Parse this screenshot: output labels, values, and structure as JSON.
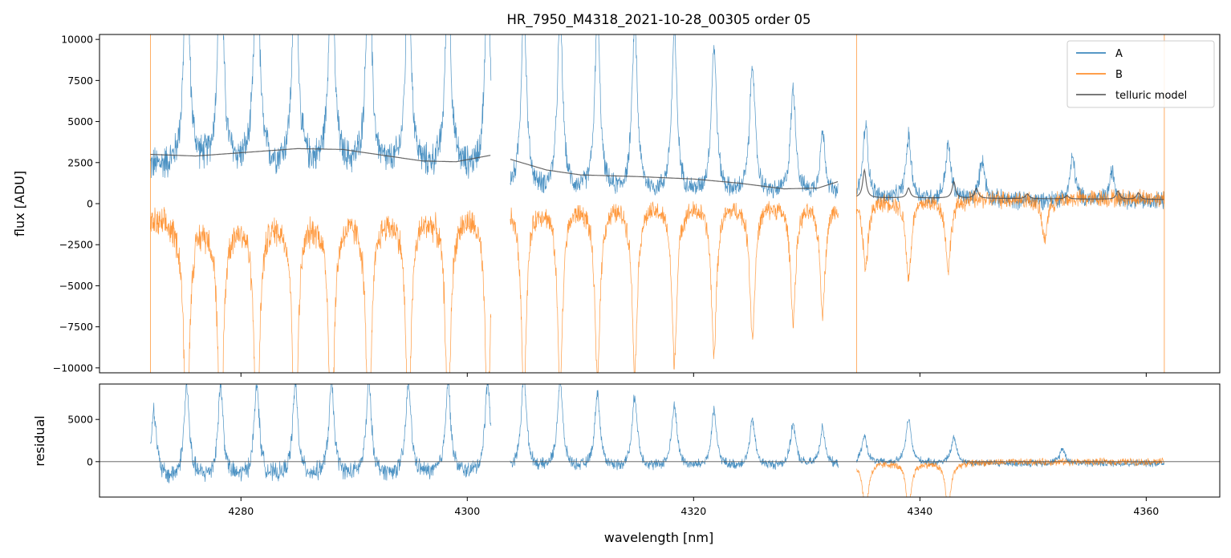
{
  "chart_data": {
    "type": "line",
    "title": "HR_7950_M4318_2021-10-28_00305  order 05",
    "xlabel": "wavelength [nm]",
    "xlim": [
      4267.5,
      4366.5
    ],
    "xticks": [
      4280,
      4300,
      4320,
      4340,
      4360
    ],
    "xtick_labels": [
      "4280",
      "4300",
      "4320",
      "4340",
      "4360"
    ],
    "legend_position": "top-right",
    "colors": {
      "A": "#1f77b4",
      "B": "#ff7f0e",
      "telluric": "#4d4d4d",
      "zero_line": "#555555"
    },
    "panels": [
      {
        "id": "flux",
        "ylabel": "flux [ADU]",
        "ylim": [
          -10300,
          10300
        ],
        "yticks": [
          -10000,
          -7500,
          -5000,
          -2500,
          0,
          2500,
          5000,
          7500,
          10000
        ],
        "ytick_labels": [
          "−10000",
          "−7500",
          "−5000",
          "−2500",
          "0",
          "2500",
          "5000",
          "7500",
          "10000"
        ],
        "series": [
          {
            "name": "A",
            "segments": [
              [
                4272.0,
                4302.1
              ],
              [
                4303.8,
                4332.8
              ],
              [
                4334.4,
                4361.6
              ]
            ],
            "peaks": [
              4275.2,
              4278.2,
              4281.4,
              4284.8,
              4288.0,
              4291.3,
              4294.8,
              4298.3,
              4301.8,
              4305.0,
              4308.2,
              4311.5,
              4314.8,
              4318.3,
              4321.8,
              4325.2,
              4328.8,
              4331.4,
              4335.2,
              4339.0,
              4342.5,
              4345.5,
              4353.5,
              4357.0
            ],
            "peak_heights": [
              14000,
              14000,
              14000,
              14000,
              14000,
              14000,
              13000,
              12500,
              12000,
              11500,
              11000,
              10800,
              10500,
              9800,
              9000,
              8000,
              6500,
              3800,
              4500,
              3800,
              3300,
              2500,
              2600,
              1800
            ],
            "baseline": [
              {
                "x": 4272,
                "y": 2200
              },
              {
                "x": 4302,
                "y": 1800
              },
              {
                "x": 4304,
                "y": 500
              },
              {
                "x": 4332.8,
                "y": 400
              },
              {
                "x": 4334.4,
                "y": 200
              },
              {
                "x": 4361.6,
                "y": 150
              }
            ],
            "noise": [
              {
                "x": 4272,
                "y": 900
              },
              {
                "x": 4302,
                "y": 800
              },
              {
                "x": 4304,
                "y": 550
              },
              {
                "x": 4333,
                "y": 450
              },
              {
                "x": 4334.4,
                "y": 450
              },
              {
                "x": 4361.6,
                "y": 450
              }
            ]
          },
          {
            "name": "B",
            "segments": [
              [
                4272.0,
                4302.1
              ],
              [
                4303.8,
                4332.8
              ],
              [
                4334.4,
                4361.6
              ]
            ],
            "dips": [
              4275.2,
              4278.2,
              4281.4,
              4284.8,
              4288.0,
              4291.3,
              4294.8,
              4298.3,
              4301.8,
              4305.0,
              4308.2,
              4311.5,
              4314.8,
              4318.3,
              4321.8,
              4325.2,
              4328.8,
              4331.4,
              4335.2,
              4339.0,
              4342.5,
              4351.0
            ],
            "dip_depths": [
              -14000,
              -14000,
              -14000,
              -14000,
              -14000,
              -14000,
              -13000,
              -12500,
              -12500,
              -11500,
              -11000,
              -10500,
              -10000,
              -9500,
              -9000,
              -8000,
              -7000,
              -6500,
              -4200,
              -4800,
              -4200,
              -2500
            ],
            "baseline": [
              {
                "x": 4272,
                "y": -1000
              },
              {
                "x": 4302,
                "y": -400
              },
              {
                "x": 4304,
                "y": 100
              },
              {
                "x": 4332.8,
                "y": 100
              },
              {
                "x": 4334.4,
                "y": 300
              },
              {
                "x": 4361.6,
                "y": 350
              }
            ],
            "noise": [
              {
                "x": 4272,
                "y": 800
              },
              {
                "x": 4302,
                "y": 700
              },
              {
                "x": 4304,
                "y": 550
              },
              {
                "x": 4333,
                "y": 450
              },
              {
                "x": 4334.4,
                "y": 450
              },
              {
                "x": 4361.6,
                "y": 450
              }
            ]
          },
          {
            "name": "telluric model",
            "segments": [
              [
                {
                  "x": 4272,
                  "y": 3000
                },
                {
                  "x": 4276,
                  "y": 2900
                },
                {
                  "x": 4280,
                  "y": 3100
                },
                {
                  "x": 4285,
                  "y": 3350
                },
                {
                  "x": 4289,
                  "y": 3300
                },
                {
                  "x": 4293,
                  "y": 2900
                },
                {
                  "x": 4296,
                  "y": 2600
                },
                {
                  "x": 4299,
                  "y": 2550
                },
                {
                  "x": 4302.1,
                  "y": 2950
                }
              ],
              [
                {
                  "x": 4303.8,
                  "y": 2700
                },
                {
                  "x": 4307,
                  "y": 2050
                },
                {
                  "x": 4310,
                  "y": 1750
                },
                {
                  "x": 4315,
                  "y": 1650
                },
                {
                  "x": 4320,
                  "y": 1500
                },
                {
                  "x": 4324,
                  "y": 1250
                },
                {
                  "x": 4328,
                  "y": 900
                },
                {
                  "x": 4331,
                  "y": 950
                },
                {
                  "x": 4332.8,
                  "y": 1350
                }
              ],
              [
                {
                  "x": 4334.4,
                  "y": 350
                },
                {
                  "x": 4340,
                  "y": 350
                },
                {
                  "x": 4350,
                  "y": 300
                },
                {
                  "x": 4361.6,
                  "y": 250
                }
              ]
            ],
            "features": [
              {
                "x": 4335.1,
                "y": 2000
              },
              {
                "x": 4339.0,
                "y": 900
              },
              {
                "x": 4343.0,
                "y": 1300
              },
              {
                "x": 4345.0,
                "y": 900
              },
              {
                "x": 4349.5,
                "y": 600
              },
              {
                "x": 4353.0,
                "y": 500
              },
              {
                "x": 4357.5,
                "y": 800
              },
              {
                "x": 4359.3,
                "y": 700
              }
            ]
          }
        ]
      },
      {
        "id": "residual",
        "ylabel": "residual",
        "ylim": [
          -4200,
          9200
        ],
        "yticks": [
          0,
          5000
        ],
        "ytick_labels": [
          "0",
          "5000"
        ],
        "zero_line": true,
        "series": [
          {
            "name": "A",
            "segments": [
              [
                4272.0,
                4302.1
              ],
              [
                4303.8,
                4332.8
              ]
            ],
            "baseline": [
              {
                "x": 4272,
                "y": -2300
              },
              {
                "x": 4285,
                "y": -2000
              },
              {
                "x": 4302,
                "y": -1600
              },
              {
                "x": 4304,
                "y": -1100
              },
              {
                "x": 4332.8,
                "y": -500
              }
            ],
            "noise": [
              {
                "x": 4272,
                "y": 1000
              },
              {
                "x": 4302,
                "y": 800
              },
              {
                "x": 4304,
                "y": 600
              },
              {
                "x": 4333,
                "y": 450
              }
            ],
            "peaks": [
              4272.3,
              4275.2,
              4278.2,
              4281.4,
              4284.8,
              4288.0,
              4291.3,
              4294.8,
              4298.3,
              4301.8,
              4305.0,
              4308.2,
              4311.5,
              4314.8,
              4318.3,
              4321.8,
              4325.2,
              4328.8,
              4331.4
            ],
            "peak_heights": [
              8500,
              11000,
              11000,
              11000,
              11000,
              11000,
              11000,
              11000,
              11000,
              11000,
              11000,
              10500,
              9000,
              8500,
              7500,
              6500,
              5500,
              5000,
              4500
            ]
          },
          {
            "name": "A",
            "segments": [
              [
                4334.4,
                4361.6
              ]
            ],
            "baseline": [
              {
                "x": 4334.4,
                "y": -200
              },
              {
                "x": 4361.6,
                "y": -200
              }
            ],
            "noise": [
              {
                "x": 4334.4,
                "y": 350
              },
              {
                "x": 4361.6,
                "y": 350
              }
            ],
            "peaks": [
              4335.1,
              4339.0,
              4343.0,
              4352.6
            ],
            "peak_heights": [
              3200,
              5200,
              3000,
              1800
            ]
          },
          {
            "name": "B",
            "segments": [
              [
                4334.4,
                4361.6
              ]
            ],
            "baseline": [
              {
                "x": 4334.4,
                "y": -100
              },
              {
                "x": 4361.6,
                "y": 0
              }
            ],
            "noise": [
              {
                "x": 4334.4,
                "y": 350
              },
              {
                "x": 4361.6,
                "y": 350
              }
            ],
            "dips": [
              4335.2,
              4339.0,
              4342.5
            ],
            "dip_depths": [
              -6000,
              -5500,
              -5500
            ]
          }
        ]
      }
    ],
    "legend": [
      "A",
      "B",
      "telluric model"
    ]
  }
}
